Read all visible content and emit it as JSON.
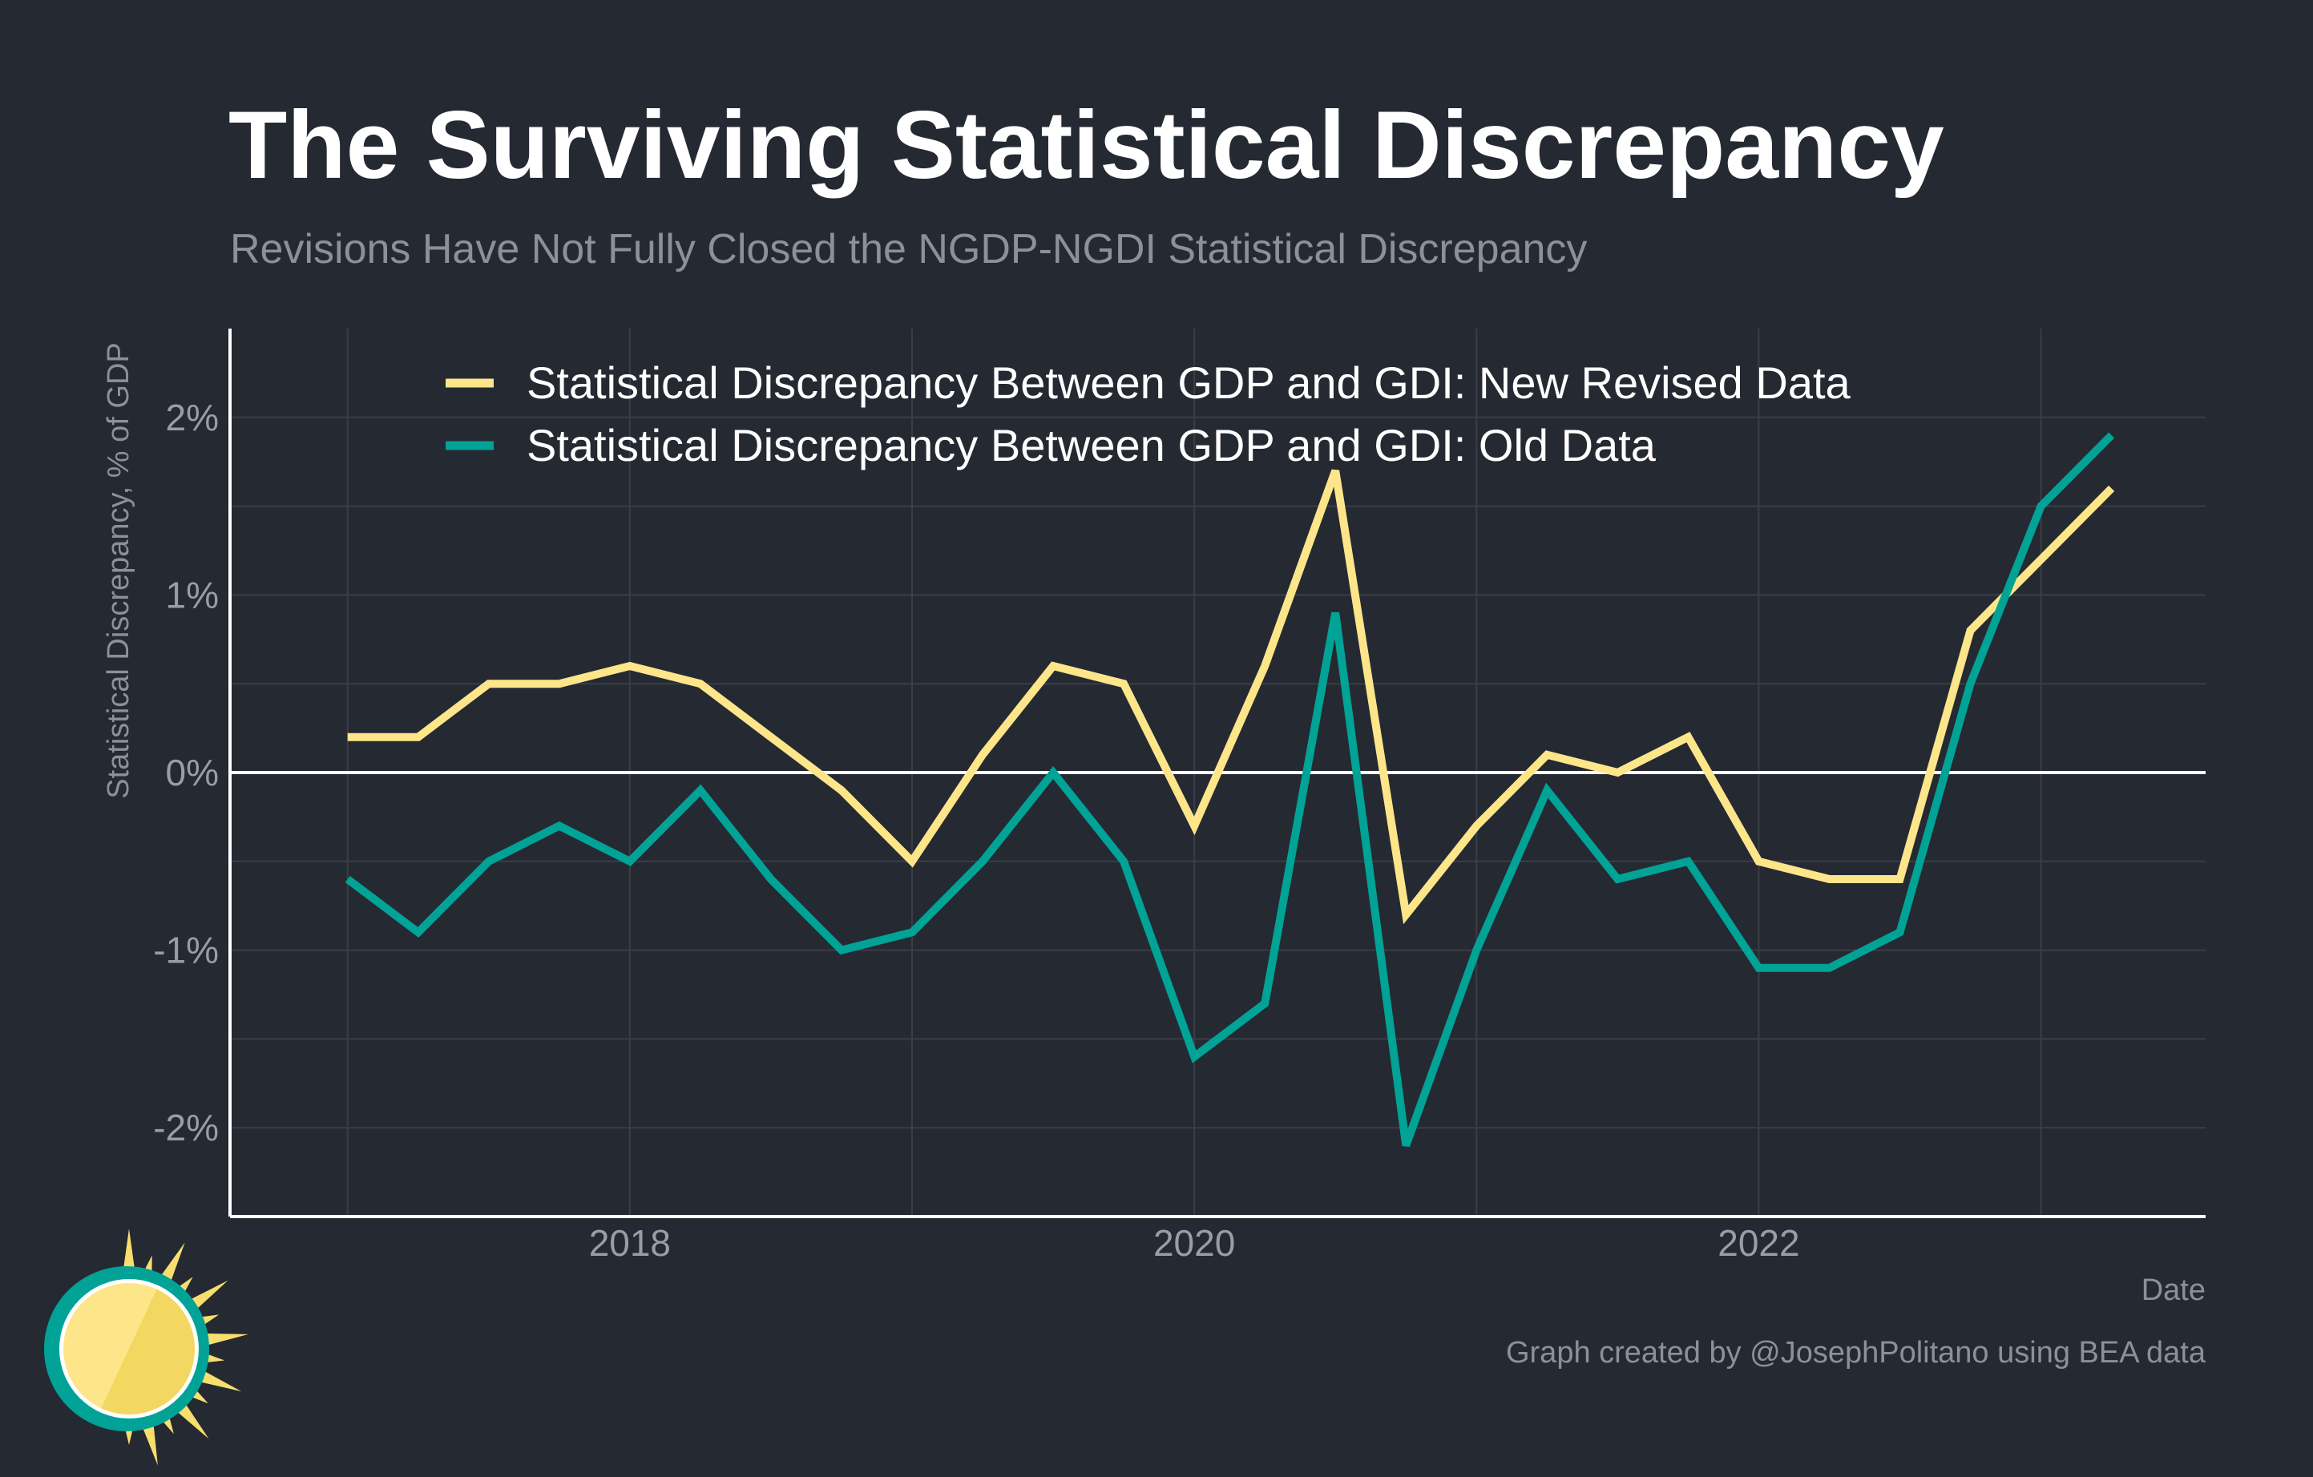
{
  "title": "The Surviving Statistical Discrepancy",
  "subtitle": "Revisions Have Not Fully Closed the NGDP-NGDI Statistical Discrepancy",
  "caption": "Graph created by @JosephPolitano using BEA data",
  "colors": {
    "background": "#252932",
    "new_series": "#fde58a",
    "old_series": "#00a396",
    "grid": "#3a3e47",
    "zero_line": "#ffffff",
    "logo_ring": "#00a396",
    "logo_sun": "#f7df6e"
  },
  "logo_icon": "sun-icon",
  "chart_data": {
    "type": "line",
    "title": "The Surviving Statistical Discrepancy",
    "subtitle": "Revisions Have Not Fully Closed the NGDP-NGDI Statistical Discrepancy",
    "xlabel": "Date",
    "ylabel": "Statistical Discrepancy, % of GDP",
    "x_tick_labels": [
      "2018",
      "2020",
      "2022"
    ],
    "y_tick_labels": [
      "-2%",
      "-1%",
      "0%",
      "1%",
      "2%"
    ],
    "y_ticks": [
      -2,
      -1,
      0,
      1,
      2
    ],
    "ylim": [
      -2.5,
      2.5
    ],
    "xlim": [
      "2016-08",
      "2023-08"
    ],
    "grid": true,
    "legend_position": "top",
    "x": [
      "2017-Q1",
      "2017-Q2",
      "2017-Q3",
      "2017-Q4",
      "2018-Q1",
      "2018-Q2",
      "2018-Q3",
      "2018-Q4",
      "2019-Q1",
      "2019-Q2",
      "2019-Q3",
      "2019-Q4",
      "2020-Q1",
      "2020-Q2",
      "2020-Q3",
      "2020-Q4",
      "2021-Q1",
      "2021-Q2",
      "2021-Q3",
      "2021-Q4",
      "2022-Q1",
      "2022-Q2",
      "2022-Q3",
      "2022-Q4",
      "2023-Q1",
      "2023-Q2"
    ],
    "series": [
      {
        "name": "Statistical Discrepancy Between GDP and GDI: New Revised Data",
        "color": "#fde58a",
        "values": [
          0.2,
          0.2,
          0.5,
          0.5,
          0.6,
          0.5,
          0.2,
          -0.1,
          -0.5,
          0.1,
          0.6,
          0.5,
          -0.3,
          0.6,
          1.7,
          -0.8,
          -0.3,
          0.1,
          0.0,
          0.2,
          -0.5,
          -0.6,
          -0.6,
          0.8,
          1.2,
          1.6
        ]
      },
      {
        "name": "Statistical Discrepancy Between GDP and GDI: Old Data",
        "color": "#00a396",
        "values": [
          -0.6,
          -0.9,
          -0.5,
          -0.3,
          -0.5,
          -0.1,
          -0.6,
          -1.0,
          -0.9,
          -0.5,
          0.0,
          -0.5,
          -1.6,
          -1.3,
          0.9,
          -2.1,
          -1.0,
          -0.1,
          -0.6,
          -0.5,
          -1.1,
          -1.1,
          -0.9,
          0.5,
          1.5,
          1.9
        ]
      }
    ]
  }
}
